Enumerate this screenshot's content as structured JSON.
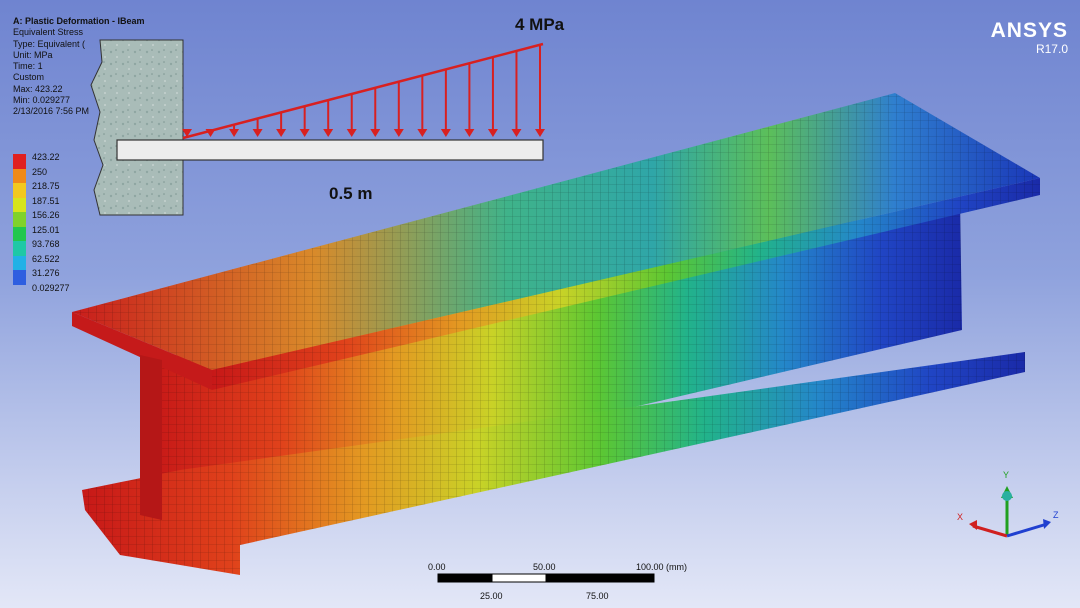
{
  "info": {
    "title": "A: Plastic Deformation - IBeam",
    "lines": [
      "Equivalent Stress",
      "Type: Equivalent (",
      "Unit: MPa",
      "Time: 1",
      "Custom",
      "Max: 423.22",
      "Min: 0.029277",
      "2/13/2016 7:56 PM"
    ]
  },
  "legend": {
    "values": [
      "423.22",
      "250",
      "218.75",
      "187.51",
      "156.26",
      "125.01",
      "93.768",
      "62.522",
      "31.276",
      "0.029277"
    ],
    "colors": [
      "#e02020",
      "#f08a18",
      "#f2c81e",
      "#d7e41c",
      "#80d22a",
      "#22c74d",
      "#1fc8a6",
      "#22b1e6",
      "#2e5ee0",
      "#1a2ad0"
    ]
  },
  "brand": {
    "name": "ANSYS",
    "version": "R17.0"
  },
  "load": {
    "pressure": "4 MPa",
    "length": "0.5 m"
  },
  "scale": {
    "top": [
      "0.00",
      "50.00",
      "100.00 (mm)"
    ],
    "bottom": [
      "25.00",
      "75.00"
    ]
  },
  "triad": {
    "x": "X",
    "y": "Y",
    "z": "Z"
  },
  "colors": {
    "red": "#d82020",
    "axis_x": "#d02020",
    "axis_y": "#20a020",
    "axis_z": "#2040d0"
  }
}
